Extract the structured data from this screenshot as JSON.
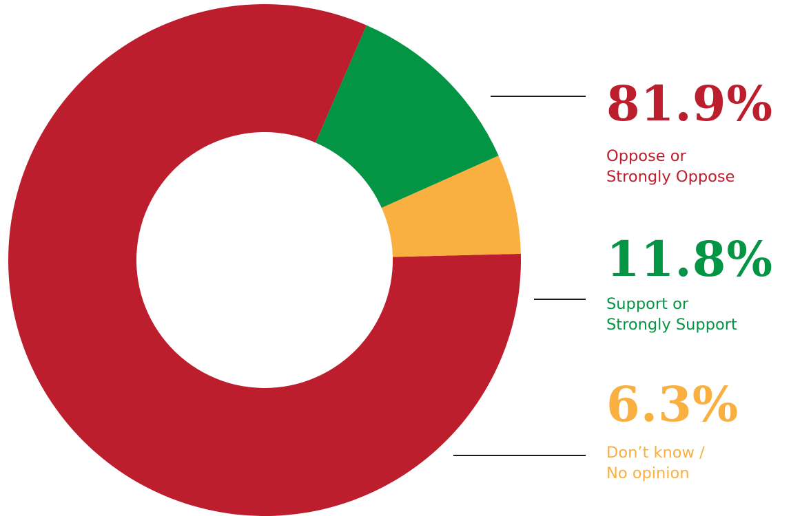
{
  "chart_data": {
    "type": "pie",
    "subtype": "donut",
    "slices": [
      {
        "value": 81.9,
        "percent_label": "81.9%",
        "label_line1": "Oppose or",
        "label_line2": "Strongly Oppose",
        "color": "#bc1e2e"
      },
      {
        "value": 11.8,
        "percent_label": "11.8%",
        "label_line1": "Support or",
        "label_line2": "Strongly Support",
        "color": "#039444"
      },
      {
        "value": 6.3,
        "percent_label": "6.3%",
        "label_line1": "Don’t know /",
        "label_line2": "No opinion",
        "color": "#f9b041"
      }
    ]
  }
}
